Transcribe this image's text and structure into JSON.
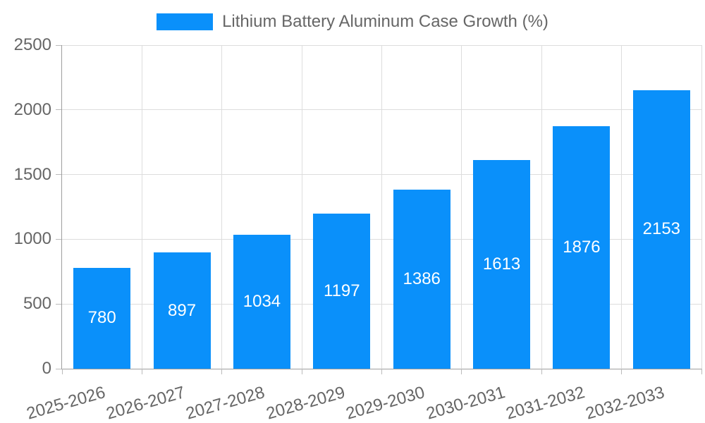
{
  "legend": {
    "label": "Lithium Battery Aluminum Case Growth (%)"
  },
  "chart_data": {
    "type": "bar",
    "title": "Lithium Battery Aluminum Case Growth (%)",
    "categories": [
      "2025-2026",
      "2026-2027",
      "2027-2028",
      "2028-2029",
      "2029-2030",
      "2030-2031",
      "2031-2032",
      "2032-2033"
    ],
    "values": [
      780,
      897,
      1034,
      1197,
      1386,
      1613,
      1876,
      2153
    ],
    "xlabel": "",
    "ylabel": "",
    "ylim": [
      0,
      2500
    ],
    "yticks": [
      0,
      500,
      1000,
      1500,
      2000,
      2500
    ],
    "grid": true,
    "legend_position": "top-center",
    "value_labels": "inside-center",
    "x_label_rotation_deg": -16
  },
  "colors": {
    "bar": "#0A90FA",
    "grid": "#DDDDDD",
    "axis": "#9E9E9E",
    "tick": "#BBBBBB",
    "text": "#666666",
    "value_label": "#FFFFFF",
    "background": "#FFFFFF"
  }
}
